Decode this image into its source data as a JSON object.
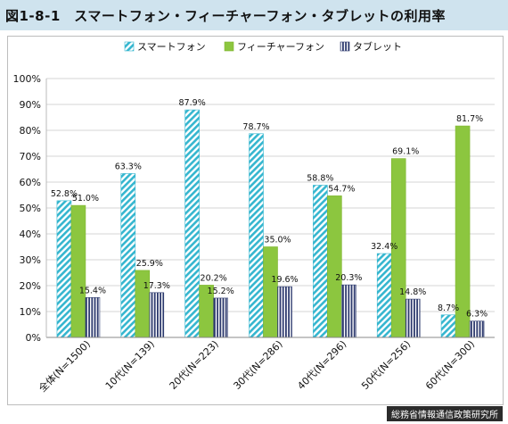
{
  "title": "図1-8-1　スマートフォン・フィーチャーフォン・タブレットの利用率",
  "source": "総務省情報通信政策研究所",
  "chart_data": {
    "type": "bar",
    "categories": [
      "全体(N=1500)",
      "10代(N=139)",
      "20代(N=223)",
      "30代(N=286)",
      "40代(N=296)",
      "50代(N=256)",
      "60代(N=300)"
    ],
    "series": [
      {
        "name": "スマートフォン",
        "values": [
          52.8,
          63.3,
          87.9,
          78.7,
          58.8,
          32.4,
          8.7
        ],
        "labels": [
          "52.8%",
          "63.3%",
          "87.9%",
          "78.7%",
          "58.8%",
          "32.4%",
          "8.7%"
        ],
        "color": "#35b6cf",
        "pattern": "diagonal-stripes"
      },
      {
        "name": "フィーチャーフォン",
        "values": [
          51.0,
          25.9,
          20.2,
          35.0,
          54.7,
          69.1,
          81.7
        ],
        "labels": [
          "51.0%",
          "25.9%",
          "20.2%",
          "35.0%",
          "54.7%",
          "69.1%",
          "81.7%"
        ],
        "color": "#8cc63f",
        "pattern": "solid"
      },
      {
        "name": "タブレット",
        "values": [
          15.4,
          17.3,
          15.2,
          19.6,
          20.3,
          14.8,
          6.3
        ],
        "labels": [
          "15.4%",
          "17.3%",
          "15.2%",
          "19.6%",
          "20.3%",
          "14.8%",
          "6.3%"
        ],
        "color": "#2d3a6e",
        "pattern": "vertical-stripes"
      }
    ],
    "ylim": [
      0,
      100
    ],
    "yticks": [
      "0%",
      "10%",
      "20%",
      "30%",
      "40%",
      "50%",
      "60%",
      "70%",
      "80%",
      "90%",
      "100%"
    ],
    "grid": true,
    "legend_position": "top"
  }
}
